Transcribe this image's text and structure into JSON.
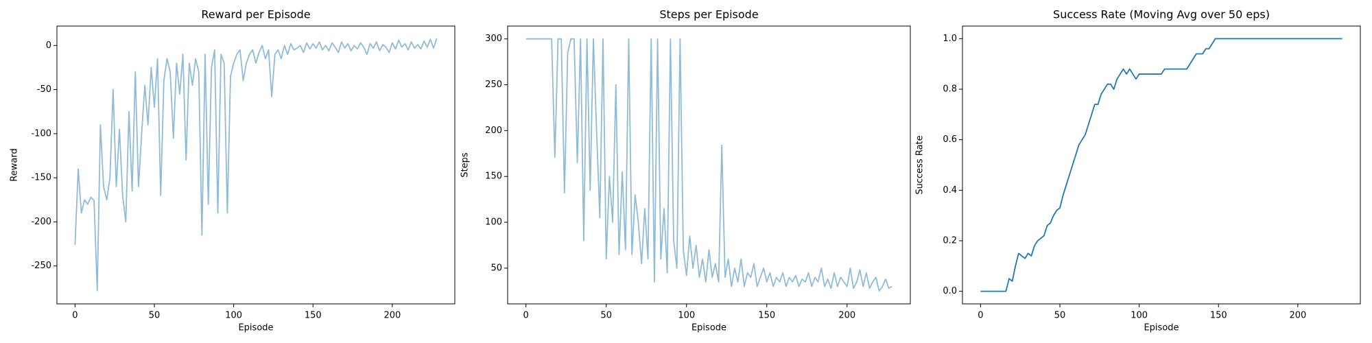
{
  "chart_data": [
    {
      "type": "line",
      "title": "Reward per Episode",
      "xlabel": "Episode",
      "ylabel": "Reward",
      "x": [
        0,
        2,
        4,
        6,
        8,
        10,
        12,
        14,
        16,
        18,
        20,
        22,
        24,
        26,
        28,
        30,
        32,
        34,
        36,
        38,
        40,
        42,
        44,
        46,
        48,
        50,
        52,
        54,
        56,
        58,
        60,
        62,
        64,
        66,
        68,
        70,
        72,
        74,
        76,
        78,
        80,
        82,
        84,
        86,
        88,
        90,
        92,
        94,
        96,
        98,
        100,
        102,
        104,
        106,
        108,
        110,
        112,
        114,
        116,
        118,
        120,
        122,
        124,
        126,
        128,
        130,
        132,
        134,
        136,
        138,
        140,
        142,
        144,
        146,
        148,
        150,
        152,
        154,
        156,
        158,
        160,
        162,
        164,
        166,
        168,
        170,
        172,
        174,
        176,
        178,
        180,
        182,
        184,
        186,
        188,
        190,
        192,
        194,
        196,
        198,
        200,
        202,
        204,
        206,
        208,
        210,
        212,
        214,
        216,
        218,
        220,
        222,
        224,
        226,
        228
      ],
      "series": [
        {
          "color": "#8fbbd9",
          "values": [
            -226,
            -140,
            -190,
            -175,
            -180,
            -172,
            -176,
            -278,
            -90,
            -160,
            -175,
            -150,
            -50,
            -160,
            -95,
            -170,
            -200,
            -75,
            -165,
            -30,
            -160,
            -100,
            -45,
            -90,
            -25,
            -70,
            -15,
            -170,
            -40,
            -15,
            -30,
            -105,
            -20,
            -55,
            -10,
            -130,
            -20,
            -45,
            -15,
            -30,
            -215,
            -10,
            -180,
            -25,
            -5,
            -190,
            -10,
            -20,
            -190,
            -35,
            -20,
            -10,
            -5,
            -40,
            -20,
            -10,
            -5,
            -20,
            -8,
            0,
            -15,
            -5,
            -58,
            -10,
            -5,
            -15,
            0,
            -10,
            2,
            -5,
            -3,
            0,
            -8,
            3,
            -4,
            2,
            -3,
            4,
            -5,
            0,
            -6,
            3,
            -2,
            -8,
            4,
            -3,
            2,
            -6,
            0,
            -4,
            3,
            -2,
            -10,
            2,
            -3,
            4,
            -6,
            1,
            -2,
            -8,
            3,
            -4,
            6,
            -2,
            2,
            -5,
            4,
            -3,
            1,
            -4,
            5,
            -2,
            7,
            -3,
            8
          ]
        }
      ],
      "xlim": [
        -11.4,
        239.4
      ],
      "xticks": [
        0,
        50,
        100,
        150,
        200
      ],
      "ylim": [
        -293,
        22
      ],
      "yticks": [
        -250,
        -200,
        -150,
        -100,
        -50,
        0
      ]
    },
    {
      "type": "line",
      "title": "Steps per Episode",
      "xlabel": "Episode",
      "ylabel": "Steps",
      "x": [
        0,
        2,
        4,
        6,
        8,
        10,
        12,
        14,
        16,
        18,
        20,
        22,
        24,
        26,
        28,
        30,
        32,
        34,
        36,
        38,
        40,
        42,
        44,
        46,
        48,
        50,
        52,
        54,
        56,
        58,
        60,
        62,
        64,
        66,
        68,
        70,
        72,
        74,
        76,
        78,
        80,
        82,
        84,
        86,
        88,
        90,
        92,
        94,
        96,
        98,
        100,
        102,
        104,
        106,
        108,
        110,
        112,
        114,
        116,
        118,
        120,
        122,
        124,
        126,
        128,
        130,
        132,
        134,
        136,
        138,
        140,
        142,
        144,
        146,
        148,
        150,
        152,
        154,
        156,
        158,
        160,
        162,
        164,
        166,
        168,
        170,
        172,
        174,
        176,
        178,
        180,
        182,
        184,
        186,
        188,
        190,
        192,
        194,
        196,
        198,
        200,
        202,
        204,
        206,
        208,
        210,
        212,
        214,
        216,
        218,
        220,
        222,
        224,
        226,
        228
      ],
      "series": [
        {
          "color": "#8fbbd9",
          "values": [
            300,
            300,
            300,
            300,
            300,
            300,
            300,
            300,
            300,
            171,
            300,
            300,
            132,
            285,
            300,
            300,
            165,
            300,
            80,
            300,
            135,
            300,
            200,
            105,
            300,
            60,
            150,
            100,
            250,
            65,
            155,
            70,
            300,
            65,
            130,
            100,
            55,
            115,
            60,
            300,
            35,
            300,
            60,
            115,
            45,
            300,
            80,
            50,
            300,
            70,
            42,
            85,
            50,
            75,
            40,
            60,
            35,
            70,
            40,
            55,
            35,
            184,
            40,
            60,
            30,
            50,
            35,
            60,
            30,
            45,
            40,
            55,
            30,
            40,
            50,
            35,
            45,
            30,
            40,
            35,
            45,
            30,
            40,
            35,
            42,
            30,
            38,
            35,
            45,
            30,
            40,
            35,
            50,
            30,
            38,
            28,
            45,
            30,
            40,
            35,
            30,
            50,
            28,
            35,
            48,
            30,
            45,
            28,
            35,
            40,
            25,
            30,
            38,
            28,
            30
          ]
        }
      ],
      "xlim": [
        -11.4,
        239.4
      ],
      "xticks": [
        0,
        50,
        100,
        150,
        200
      ],
      "ylim": [
        11,
        314
      ],
      "yticks": [
        50,
        100,
        150,
        200,
        250,
        300
      ]
    },
    {
      "type": "line",
      "title": "Success Rate (Moving Avg over 50 eps)",
      "xlabel": "Episode",
      "ylabel": "Success Rate",
      "x": [
        0,
        2,
        4,
        6,
        8,
        10,
        12,
        14,
        16,
        18,
        20,
        22,
        24,
        26,
        28,
        30,
        32,
        34,
        36,
        38,
        40,
        42,
        44,
        46,
        48,
        50,
        52,
        54,
        56,
        58,
        60,
        62,
        64,
        66,
        68,
        70,
        72,
        74,
        76,
        78,
        80,
        82,
        84,
        86,
        88,
        90,
        92,
        94,
        96,
        98,
        100,
        102,
        104,
        106,
        108,
        110,
        112,
        114,
        116,
        118,
        120,
        122,
        124,
        126,
        128,
        130,
        132,
        134,
        136,
        138,
        140,
        142,
        144,
        146,
        148,
        150,
        152,
        154,
        156,
        158,
        160,
        162,
        164,
        166,
        168,
        170,
        172,
        174,
        176,
        178,
        180,
        182,
        184,
        186,
        188,
        190,
        192,
        194,
        196,
        198,
        200,
        202,
        204,
        206,
        208,
        210,
        212,
        214,
        216,
        218,
        220,
        222,
        224,
        226,
        228
      ],
      "series": [
        {
          "color": "#1f77b4",
          "values": [
            0,
            0,
            0,
            0,
            0,
            0,
            0,
            0,
            0,
            0.05,
            0.04,
            0.1,
            0.15,
            0.14,
            0.13,
            0.15,
            0.14,
            0.18,
            0.2,
            0.21,
            0.22,
            0.26,
            0.27,
            0.3,
            0.32,
            0.33,
            0.38,
            0.42,
            0.46,
            0.5,
            0.54,
            0.58,
            0.6,
            0.62,
            0.66,
            0.7,
            0.74,
            0.74,
            0.78,
            0.8,
            0.82,
            0.82,
            0.8,
            0.84,
            0.86,
            0.88,
            0.86,
            0.88,
            0.86,
            0.84,
            0.86,
            0.86,
            0.86,
            0.86,
            0.86,
            0.86,
            0.86,
            0.86,
            0.88,
            0.88,
            0.88,
            0.88,
            0.88,
            0.88,
            0.88,
            0.88,
            0.9,
            0.92,
            0.94,
            0.94,
            0.94,
            0.96,
            0.96,
            0.98,
            1,
            1,
            1,
            1,
            1,
            1,
            1,
            1,
            1,
            1,
            1,
            1,
            1,
            1,
            1,
            1,
            1,
            1,
            1,
            1,
            1,
            1,
            1,
            1,
            1,
            1,
            1,
            1,
            1,
            1,
            1,
            1,
            1,
            1,
            1,
            1,
            1,
            1,
            1,
            1,
            1
          ]
        }
      ],
      "xlim": [
        -11.4,
        239.4
      ],
      "xticks": [
        0,
        50,
        100,
        150,
        200
      ],
      "ylim": [
        -0.05,
        1.05
      ],
      "yticks": [
        {
          "value": 0,
          "label": "0.0"
        },
        0.2,
        0.4,
        0.6,
        0.8,
        {
          "value": 1,
          "label": "1.0"
        }
      ]
    }
  ]
}
